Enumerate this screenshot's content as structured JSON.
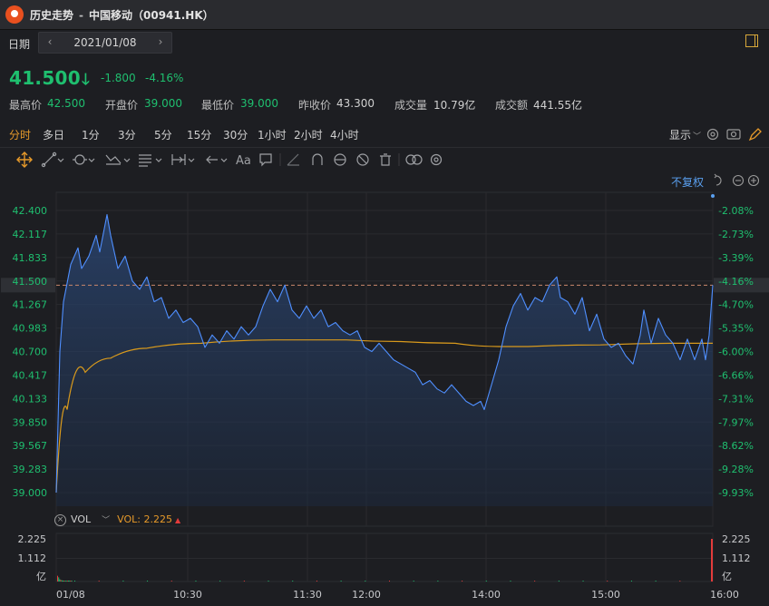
{
  "window": {
    "title": "历史走势",
    "separator": "-",
    "stock_name": "中国移动（00941.HK）"
  },
  "date_bar": {
    "label": "日期",
    "value": "2021/01/08",
    "prev": "‹",
    "next": "›"
  },
  "quote": {
    "price": "41.500",
    "arrow": "🡓",
    "change": "-1.800",
    "change_pct": "-4.16%",
    "stats": [
      {
        "label": "最高价",
        "value": "42.500",
        "tone": "green"
      },
      {
        "label": "开盘价",
        "value": "39.000",
        "tone": "green"
      },
      {
        "label": "最低价",
        "value": "39.000",
        "tone": "green"
      },
      {
        "label": "昨收价",
        "value": "43.300",
        "tone": "white"
      },
      {
        "label": "成交量",
        "value": "10.79亿",
        "tone": "white"
      },
      {
        "label": "成交额",
        "value": "441.55亿",
        "tone": "white"
      }
    ]
  },
  "periods": [
    "分时",
    "多日",
    "1分",
    "3分",
    "5分",
    "15分",
    "30分",
    "1小时",
    "2小时",
    "4小时"
  ],
  "active_period": "分时",
  "display_menu": "显示",
  "toolbar": {
    "text_tool": "Aa"
  },
  "adjust_label": "不复权",
  "colors": {
    "up": "#e33b3b",
    "down": "#1fbf6f",
    "price_line": "#4f8fff",
    "avg_line": "#d99a1c",
    "accent": "#e79a2a",
    "link": "#5aa0f0"
  },
  "chart_data": {
    "type": "line",
    "x_ticks": [
      "01/08",
      "10:30",
      "11:30",
      "12:00",
      "14:00",
      "15:00",
      "16:00"
    ],
    "left_ticks": [
      "42.400",
      "42.117",
      "41.833",
      "41.500",
      "41.267",
      "40.983",
      "40.700",
      "40.417",
      "40.133",
      "39.850",
      "39.567",
      "39.283",
      "39.000"
    ],
    "right_ticks": [
      "-2.08%",
      "-2.73%",
      "-3.39%",
      "-4.16%",
      "-4.70%",
      "-5.35%",
      "-6.00%",
      "-6.66%",
      "-7.31%",
      "-7.97%",
      "-8.62%",
      "-9.28%",
      "-9.93%"
    ],
    "current_price": "41.500",
    "current_pct": "-4.16%",
    "ylim": [
      39.0,
      42.4
    ],
    "series": [
      {
        "name": "price",
        "points": [
          [
            0,
            39.0
          ],
          [
            1,
            40.7
          ],
          [
            2,
            41.3
          ],
          [
            4,
            41.75
          ],
          [
            6,
            41.95
          ],
          [
            7,
            41.7
          ],
          [
            9,
            41.85
          ],
          [
            11,
            42.1
          ],
          [
            12,
            41.9
          ],
          [
            14,
            42.35
          ],
          [
            15,
            42.1
          ],
          [
            17,
            41.7
          ],
          [
            19,
            41.85
          ],
          [
            21,
            41.55
          ],
          [
            23,
            41.45
          ],
          [
            25,
            41.6
          ],
          [
            27,
            41.3
          ],
          [
            29,
            41.35
          ],
          [
            31,
            41.1
          ],
          [
            33,
            41.2
          ],
          [
            35,
            41.05
          ],
          [
            37,
            41.1
          ],
          [
            39,
            41.0
          ],
          [
            41,
            40.75
          ],
          [
            43,
            40.9
          ],
          [
            45,
            40.8
          ],
          [
            47,
            40.95
          ],
          [
            49,
            40.85
          ],
          [
            51,
            41.0
          ],
          [
            53,
            40.9
          ],
          [
            55,
            41.0
          ],
          [
            57,
            41.25
          ],
          [
            59,
            41.45
          ],
          [
            61,
            41.3
          ],
          [
            63,
            41.5
          ],
          [
            65,
            41.2
          ],
          [
            67,
            41.1
          ],
          [
            69,
            41.25
          ],
          [
            71,
            41.1
          ],
          [
            73,
            41.2
          ],
          [
            75,
            41.0
          ],
          [
            77,
            41.05
          ],
          [
            79,
            40.95
          ],
          [
            81,
            40.9
          ],
          [
            83,
            40.95
          ],
          [
            85,
            40.75
          ],
          [
            87,
            40.7
          ],
          [
            89,
            40.8
          ],
          [
            91,
            40.7
          ],
          [
            93,
            40.6
          ],
          [
            95,
            40.55
          ],
          [
            97,
            40.5
          ],
          [
            99,
            40.45
          ],
          [
            101,
            40.3
          ],
          [
            103,
            40.35
          ],
          [
            105,
            40.25
          ],
          [
            107,
            40.2
          ],
          [
            109,
            40.3
          ],
          [
            111,
            40.2
          ],
          [
            113,
            40.1
          ],
          [
            115,
            40.05
          ],
          [
            117,
            40.1
          ],
          [
            118,
            40.0
          ],
          [
            120,
            40.3
          ],
          [
            122,
            40.6
          ],
          [
            124,
            41.0
          ],
          [
            126,
            41.25
          ],
          [
            128,
            41.4
          ],
          [
            130,
            41.2
          ],
          [
            132,
            41.35
          ],
          [
            134,
            41.3
          ],
          [
            136,
            41.5
          ],
          [
            138,
            41.6
          ],
          [
            139,
            41.35
          ],
          [
            141,
            41.3
          ],
          [
            143,
            41.15
          ],
          [
            145,
            41.35
          ],
          [
            147,
            40.95
          ],
          [
            149,
            41.15
          ],
          [
            151,
            40.85
          ],
          [
            153,
            40.75
          ],
          [
            155,
            40.8
          ],
          [
            157,
            40.65
          ],
          [
            159,
            40.55
          ],
          [
            161,
            40.9
          ],
          [
            162,
            41.2
          ],
          [
            164,
            40.8
          ],
          [
            166,
            41.1
          ],
          [
            168,
            40.9
          ],
          [
            170,
            40.8
          ],
          [
            172,
            40.6
          ],
          [
            174,
            40.85
          ],
          [
            176,
            40.6
          ],
          [
            178,
            40.85
          ],
          [
            179,
            40.6
          ],
          [
            180,
            40.9
          ],
          [
            181,
            41.5
          ]
        ]
      },
      {
        "name": "average",
        "points": [
          [
            0,
            39.0
          ],
          [
            3,
            40.0
          ],
          [
            8,
            40.45
          ],
          [
            15,
            40.62
          ],
          [
            25,
            40.74
          ],
          [
            40,
            40.8
          ],
          [
            60,
            40.84
          ],
          [
            80,
            40.84
          ],
          [
            95,
            40.82
          ],
          [
            110,
            40.8
          ],
          [
            122,
            40.76
          ],
          [
            130,
            40.76
          ],
          [
            150,
            40.78
          ],
          [
            170,
            40.8
          ],
          [
            181,
            40.8
          ]
        ]
      }
    ],
    "x_domain": [
      0,
      181
    ],
    "volume": {
      "label": "VOL",
      "value_text": "VOL: 2.225",
      "indicator": "▲",
      "ticks": [
        "2.225",
        "1.112",
        "亿"
      ],
      "ylim": [
        0,
        2.225
      ],
      "bars": [
        0.3,
        0.22,
        0.12,
        0.08,
        0.06,
        0.05,
        0.04,
        0.04,
        0.03,
        0.04,
        0.03,
        0.03,
        0.02,
        0.03,
        0.02,
        0.02,
        0.02,
        0.02,
        0.02,
        0.02,
        0.02,
        0.02,
        0.02,
        0.02,
        0.02,
        0.02,
        0.02,
        0.02,
        0.02,
        0.02,
        0.02,
        0.02,
        0.02,
        0.02,
        0.02,
        0.02,
        0.02,
        0.02,
        0.02,
        0.02,
        2.225
      ]
    }
  }
}
